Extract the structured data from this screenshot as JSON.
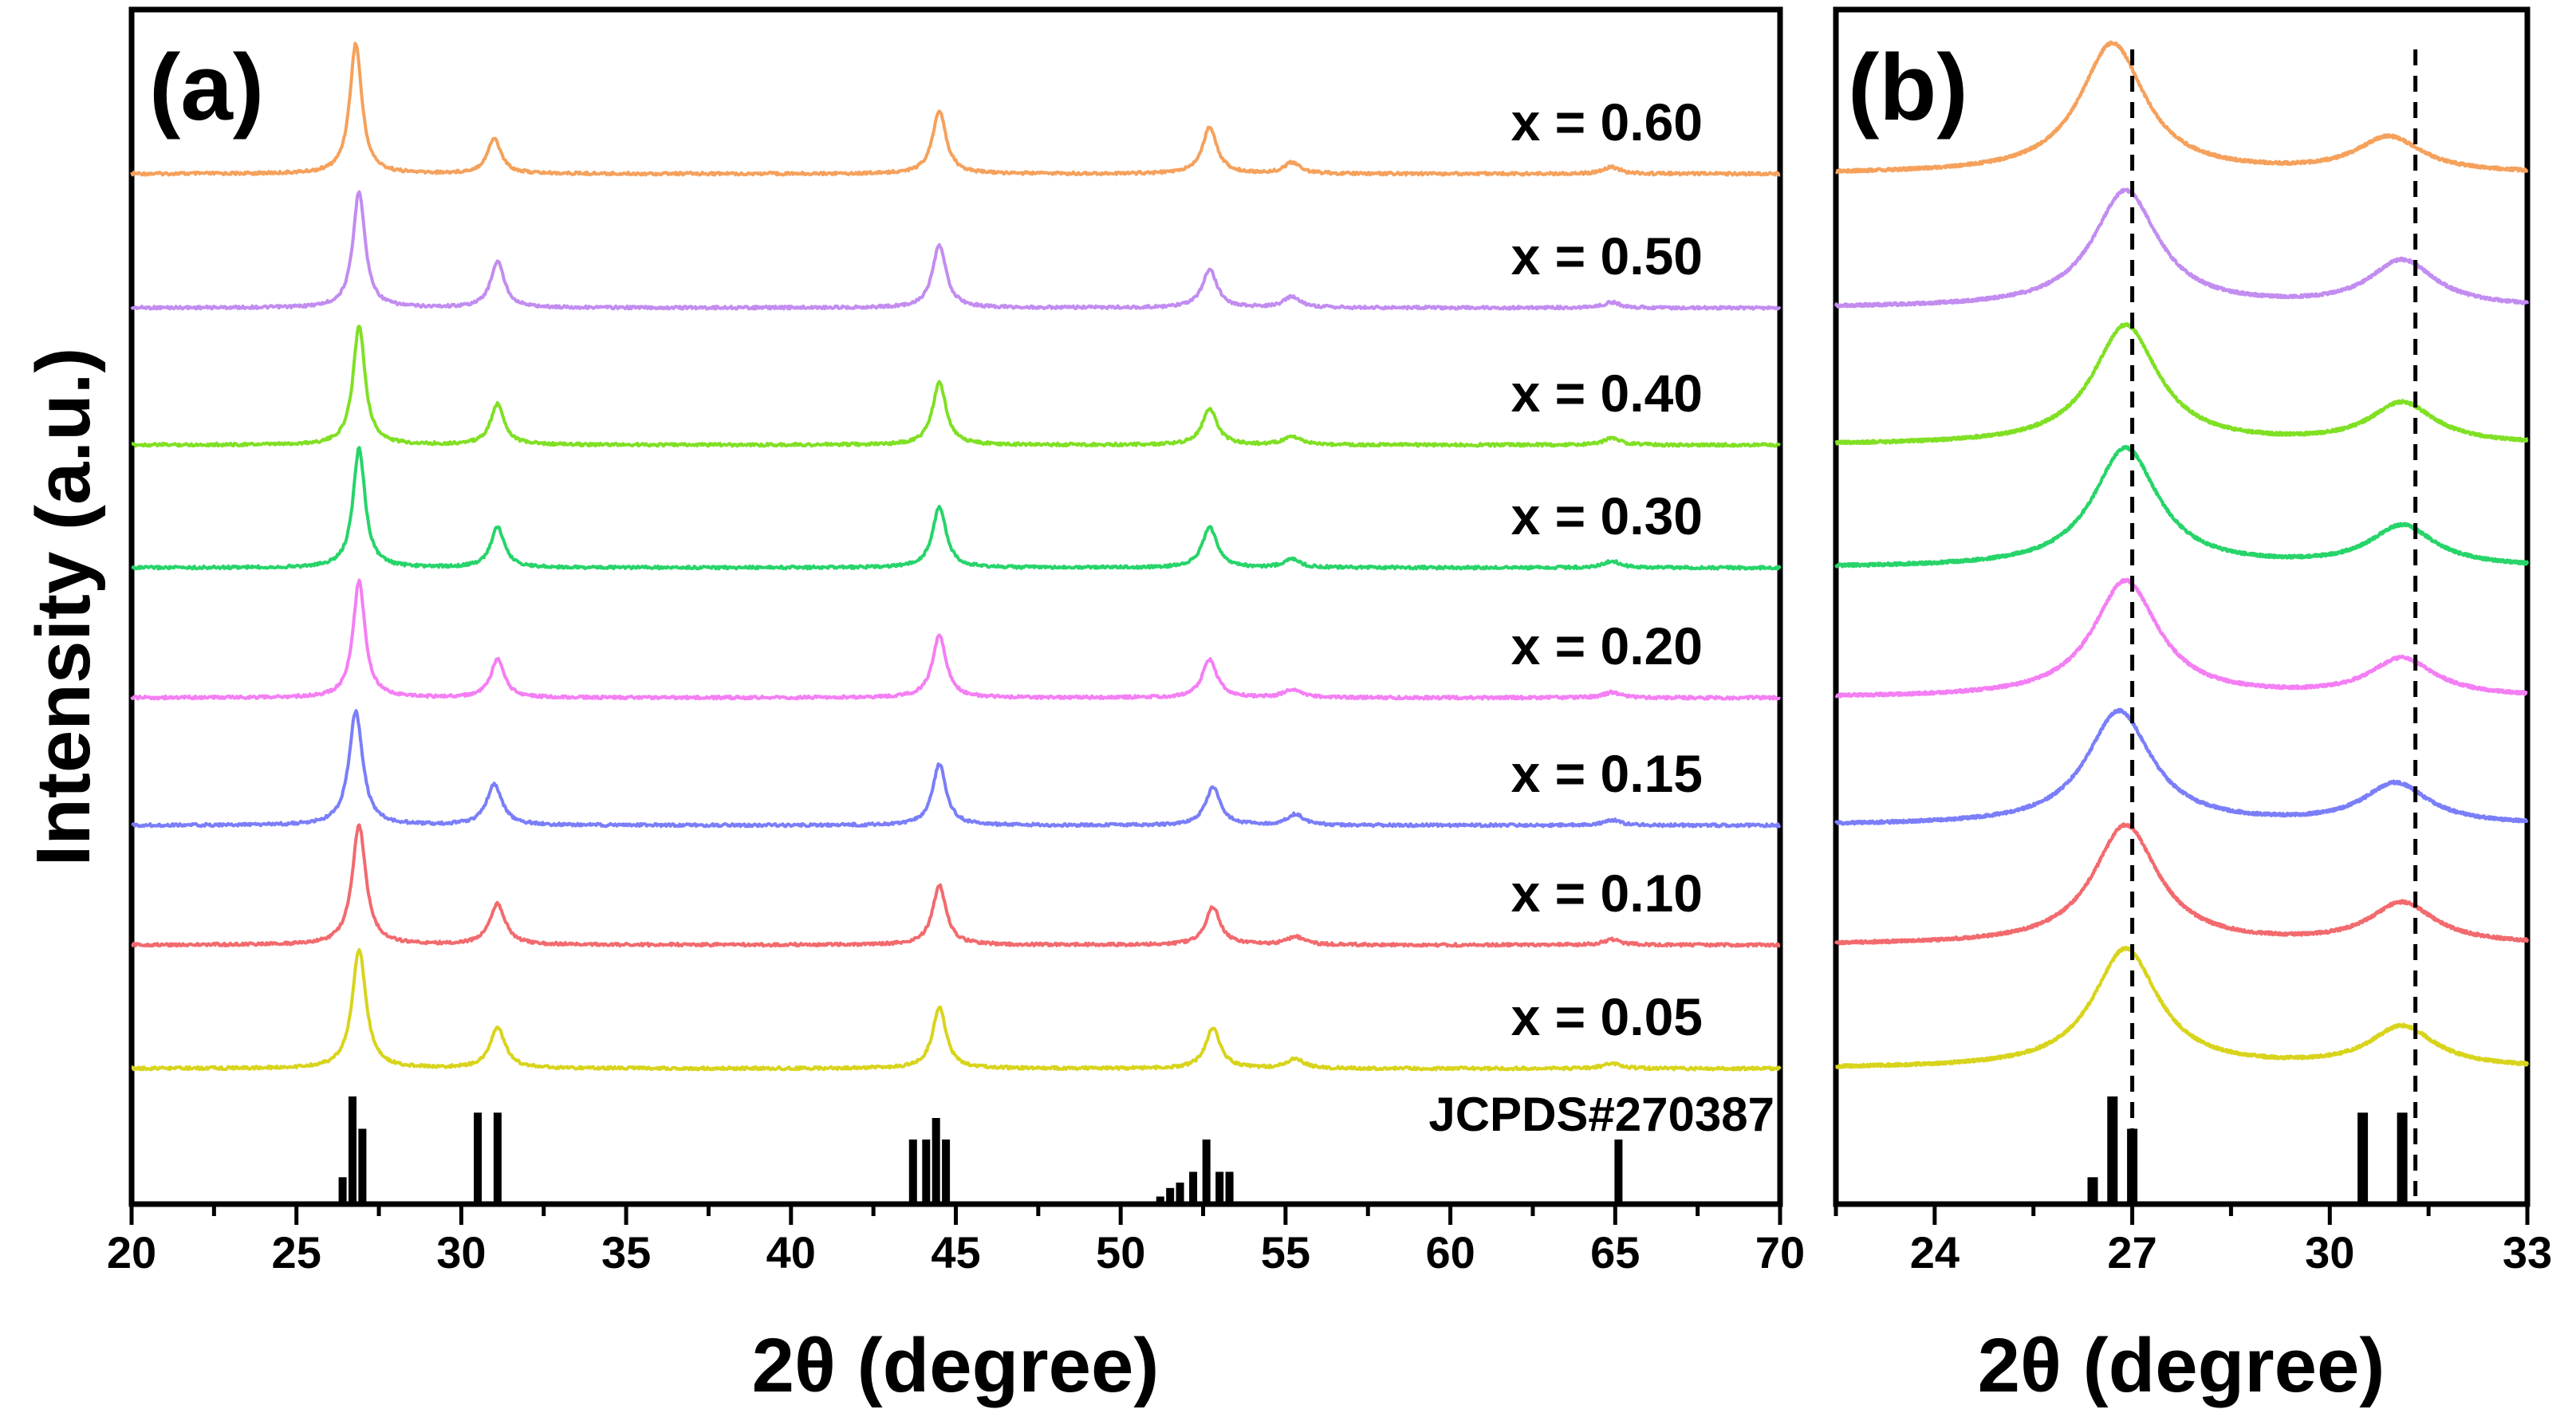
{
  "chart_data": [
    {
      "panel": "a",
      "type": "line",
      "panel_label": "(a)",
      "xlabel": "2θ (degree)",
      "ylabel": "Intensity (a.u.)",
      "xlim": [
        20,
        70
      ],
      "xticks": [
        20,
        25,
        30,
        35,
        40,
        45,
        50,
        55,
        60,
        65,
        70
      ],
      "series": [
        {
          "name": "x = 0.60",
          "color": "#f5a15c",
          "peaks": [
            [
              26.8,
              9.6,
              0.22
            ],
            [
              31.0,
              2.6,
              0.25
            ],
            [
              44.5,
              4.6,
              0.25
            ],
            [
              52.7,
              3.4,
              0.27
            ],
            [
              55.2,
              0.8,
              0.3
            ],
            [
              64.9,
              0.5,
              0.3
            ]
          ]
        },
        {
          "name": "x = 0.50",
          "color": "#c28cf0",
          "peaks": [
            [
              26.9,
              8.6,
              0.22
            ],
            [
              31.1,
              3.4,
              0.25
            ],
            [
              44.5,
              4.6,
              0.25
            ],
            [
              52.7,
              2.8,
              0.27
            ],
            [
              55.2,
              0.8,
              0.3
            ],
            [
              64.9,
              0.4,
              0.3
            ]
          ]
        },
        {
          "name": "x = 0.40",
          "color": "#80e024",
          "peaks": [
            [
              26.9,
              8.8,
              0.22
            ],
            [
              31.1,
              3.0,
              0.25
            ],
            [
              44.5,
              4.6,
              0.25
            ],
            [
              52.7,
              2.7,
              0.27
            ],
            [
              55.2,
              0.6,
              0.3
            ],
            [
              64.9,
              0.5,
              0.3
            ]
          ]
        },
        {
          "name": "x = 0.30",
          "color": "#27d46a",
          "peaks": [
            [
              26.9,
              8.8,
              0.22
            ],
            [
              31.1,
              3.0,
              0.25
            ],
            [
              44.5,
              4.5,
              0.25
            ],
            [
              52.7,
              3.0,
              0.27
            ],
            [
              55.2,
              0.6,
              0.3
            ],
            [
              64.9,
              0.5,
              0.3
            ]
          ]
        },
        {
          "name": "x = 0.20",
          "color": "#f47ef4",
          "peaks": [
            [
              26.9,
              8.6,
              0.22
            ],
            [
              31.1,
              2.8,
              0.25
            ],
            [
              44.5,
              4.6,
              0.25
            ],
            [
              52.7,
              2.8,
              0.27
            ],
            [
              55.2,
              0.6,
              0.3
            ],
            [
              64.9,
              0.4,
              0.3
            ]
          ]
        },
        {
          "name": "x = 0.15",
          "color": "#7a7ef8",
          "peaks": [
            [
              26.8,
              8.4,
              0.25
            ],
            [
              31.0,
              3.0,
              0.28
            ],
            [
              44.5,
              4.5,
              0.25
            ],
            [
              52.8,
              2.8,
              0.27
            ],
            [
              55.3,
              0.8,
              0.3
            ],
            [
              64.9,
              0.4,
              0.3
            ]
          ]
        },
        {
          "name": "x = 0.10",
          "color": "#f26a6e",
          "peaks": [
            [
              26.9,
              8.8,
              0.25
            ],
            [
              31.1,
              3.0,
              0.28
            ],
            [
              44.5,
              4.4,
              0.25
            ],
            [
              52.8,
              2.8,
              0.27
            ],
            [
              55.3,
              0.6,
              0.3
            ],
            [
              64.9,
              0.4,
              0.3
            ]
          ]
        },
        {
          "name": "x = 0.05",
          "color": "#d8d41c",
          "peaks": [
            [
              26.9,
              8.8,
              0.25
            ],
            [
              31.1,
              3.0,
              0.28
            ],
            [
              44.5,
              4.5,
              0.25
            ],
            [
              52.8,
              3.0,
              0.27
            ],
            [
              55.3,
              0.7,
              0.3
            ],
            [
              64.9,
              0.4,
              0.3
            ]
          ]
        }
      ],
      "reference": {
        "name": "JCPDS#270387",
        "sticks": [
          [
            26.4,
            0.25
          ],
          [
            26.7,
            1.0
          ],
          [
            27.0,
            0.7
          ],
          [
            30.5,
            0.85
          ],
          [
            31.1,
            0.85
          ],
          [
            43.7,
            0.6
          ],
          [
            44.1,
            0.6
          ],
          [
            44.4,
            0.8
          ],
          [
            44.7,
            0.6
          ],
          [
            51.2,
            0.07
          ],
          [
            51.5,
            0.15
          ],
          [
            51.8,
            0.2
          ],
          [
            52.2,
            0.3
          ],
          [
            52.6,
            0.6
          ],
          [
            53.0,
            0.3
          ],
          [
            53.3,
            0.3
          ],
          [
            65.1,
            0.6
          ]
        ]
      }
    },
    {
      "panel": "b",
      "type": "line",
      "panel_label": "(b)",
      "xlabel": "2θ (degree)",
      "xlim": [
        22.5,
        33
      ],
      "xticks": [
        24,
        27,
        30,
        33
      ],
      "dashed_lines": [
        27.0,
        31.3
      ],
      "series": [
        {
          "name": "x = 0.60",
          "color": "#f5a15c",
          "peaks": [
            [
              26.7,
              9.6,
              0.6
            ],
            [
              30.9,
              2.6,
              0.6
            ]
          ]
        },
        {
          "name": "x = 0.50",
          "color": "#c28cf0",
          "peaks": [
            [
              26.9,
              8.6,
              0.6
            ],
            [
              31.1,
              3.4,
              0.6
            ]
          ]
        },
        {
          "name": "x = 0.40",
          "color": "#80e024",
          "peaks": [
            [
              26.9,
              8.8,
              0.6
            ],
            [
              31.1,
              3.0,
              0.6
            ]
          ]
        },
        {
          "name": "x = 0.30",
          "color": "#27d46a",
          "peaks": [
            [
              26.9,
              8.8,
              0.6
            ],
            [
              31.1,
              3.0,
              0.6
            ]
          ]
        },
        {
          "name": "x = 0.20",
          "color": "#f47ef4",
          "peaks": [
            [
              26.9,
              8.6,
              0.6
            ],
            [
              31.1,
              2.8,
              0.6
            ]
          ]
        },
        {
          "name": "x = 0.15",
          "color": "#7a7ef8",
          "peaks": [
            [
              26.8,
              8.4,
              0.6
            ],
            [
              31.0,
              3.0,
              0.6
            ]
          ]
        },
        {
          "name": "x = 0.10",
          "color": "#f26a6e",
          "peaks": [
            [
              26.9,
              8.8,
              0.6
            ],
            [
              31.1,
              3.0,
              0.6
            ]
          ]
        },
        {
          "name": "x = 0.05",
          "color": "#d8d41c",
          "peaks": [
            [
              26.9,
              8.8,
              0.6
            ],
            [
              31.1,
              3.0,
              0.6
            ]
          ]
        }
      ],
      "reference": {
        "sticks": [
          [
            26.4,
            0.25
          ],
          [
            26.7,
            1.0
          ],
          [
            27.0,
            0.7
          ],
          [
            30.5,
            0.85
          ],
          [
            31.1,
            0.85
          ]
        ]
      }
    }
  ]
}
